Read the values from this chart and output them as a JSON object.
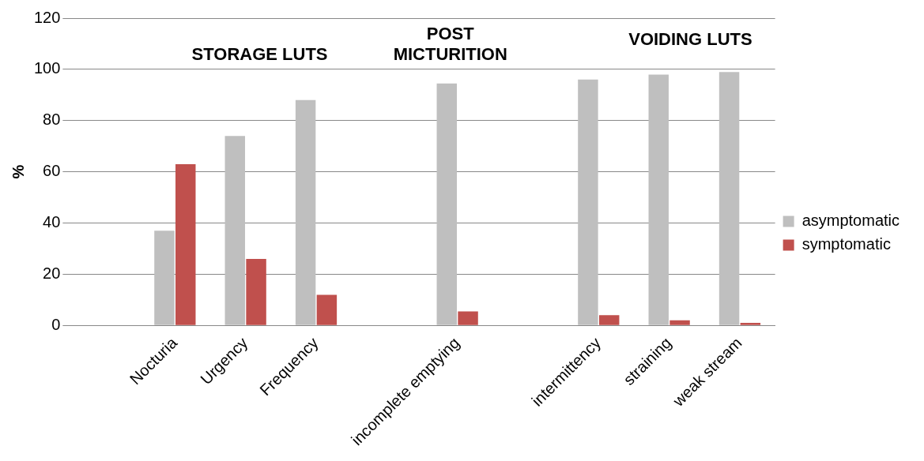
{
  "chart_data": {
    "type": "bar",
    "ylabel": "%",
    "categories": [
      null,
      "Nocturia",
      "Urgency",
      "Frequency",
      null,
      "incomplete emptying",
      null,
      "intermittency",
      "straining",
      "weak stream"
    ],
    "series": [
      {
        "name": "asymptomatic",
        "color": "#bfbfbf",
        "values": [
          null,
          37,
          74,
          88,
          null,
          94.5,
          null,
          96,
          98,
          99
        ]
      },
      {
        "name": "symptomatic",
        "color": "#c0504d",
        "values": [
          null,
          63,
          26,
          12,
          null,
          5.5,
          null,
          4,
          2,
          1
        ]
      }
    ],
    "ylim": [
      0,
      120
    ],
    "yticks": [
      0,
      20,
      40,
      60,
      80,
      100,
      120
    ],
    "grid": "y",
    "legend": "right",
    "annotations": [
      "STORAGE LUTS",
      "POST\nMICTURITION",
      "VOIDING LUTS"
    ]
  }
}
